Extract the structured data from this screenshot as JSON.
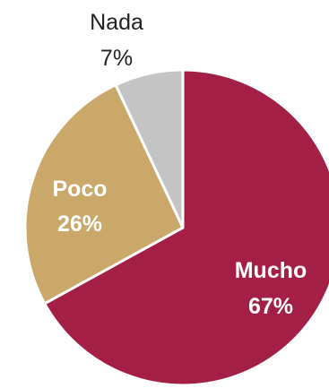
{
  "chart_data": {
    "type": "pie",
    "title": "",
    "slices": [
      {
        "label": "Mucho",
        "value": 67,
        "display": "67%",
        "color": "#a31f45"
      },
      {
        "label": "Poco",
        "value": 26,
        "display": "26%",
        "color": "#c9a86a"
      },
      {
        "label": "Nada",
        "value": 7,
        "display": "7%",
        "color": "#c4c4c4"
      }
    ],
    "start_angle": "12 o'clock",
    "direction": "clockwise",
    "label_placement": {
      "Mucho": "inside",
      "Poco": "inside",
      "Nada": "outside-above"
    }
  }
}
